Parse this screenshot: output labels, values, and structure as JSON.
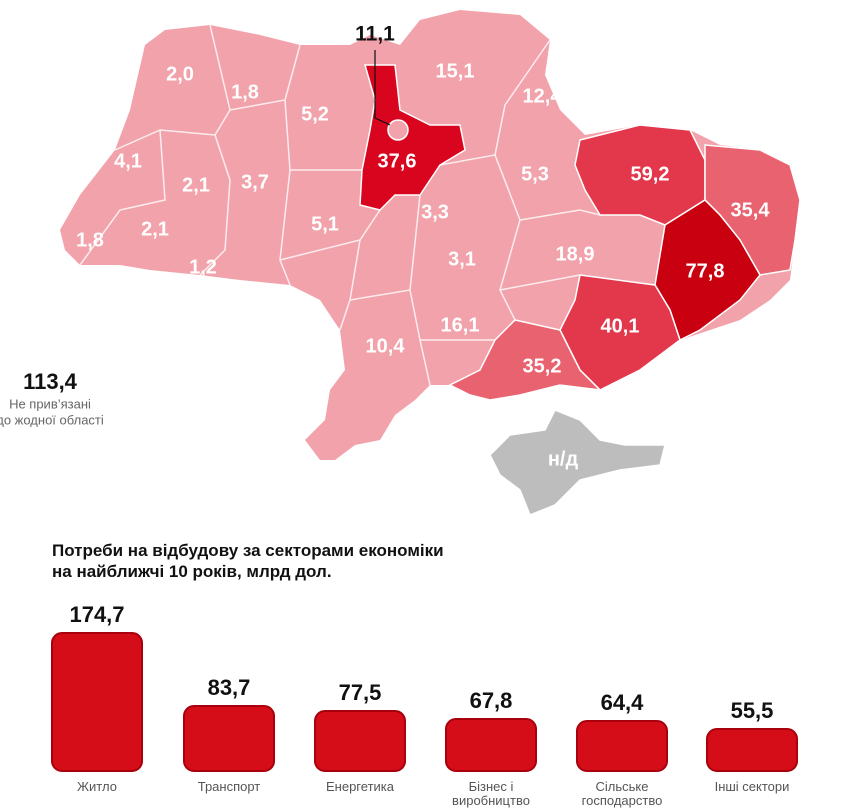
{
  "map": {
    "base_color": "#f2a2aa",
    "regions": [
      {
        "label": "2,0"
      },
      {
        "label": "1,8"
      },
      {
        "label": "5,2"
      },
      {
        "label": "15,1"
      },
      {
        "label": "12,4"
      },
      {
        "label": "4,1"
      },
      {
        "label": "2,1"
      },
      {
        "label": "3,7"
      },
      {
        "label": "37,6",
        "color": "#d9051f"
      },
      {
        "label": "5,3"
      },
      {
        "label": "59,2",
        "color": "#e3384b"
      },
      {
        "label": "35,4",
        "color": "#e9626f"
      },
      {
        "label": "1,8"
      },
      {
        "label": "2,1"
      },
      {
        "label": "1,2"
      },
      {
        "label": "5,1"
      },
      {
        "label": "3,3"
      },
      {
        "label": "18,9"
      },
      {
        "label": "77,8",
        "color": "#c8000f"
      },
      {
        "label": "3,1"
      },
      {
        "label": "16,1"
      },
      {
        "label": "40,1",
        "color": "#e3384b"
      },
      {
        "label": "10,4"
      },
      {
        "label": "35,2",
        "color": "#e9626f"
      },
      {
        "label": "н/д",
        "color": "#bdbdbd"
      }
    ],
    "kyiv_city": "11,1",
    "unassigned": {
      "value": "113,4",
      "note": [
        "Не прив’язані",
        "до жодної області"
      ]
    }
  },
  "chart_data": {
    "type": "bar",
    "title": [
      "Потреби на відбудову за секторами економіки",
      "на найближчі 10 років, млрд дол."
    ],
    "categories": [
      "Житло",
      "Транспорт",
      "Енергетика",
      "Бізнес і виробництво",
      "Сільське господарство",
      "Інші сектори"
    ],
    "values": [
      174.7,
      83.7,
      77.5,
      67.8,
      64.4,
      55.5
    ],
    "value_labels": [
      "174,7",
      "83,7",
      "77,5",
      "67,8",
      "64,4",
      "55,5"
    ],
    "color": "#d40d18"
  }
}
